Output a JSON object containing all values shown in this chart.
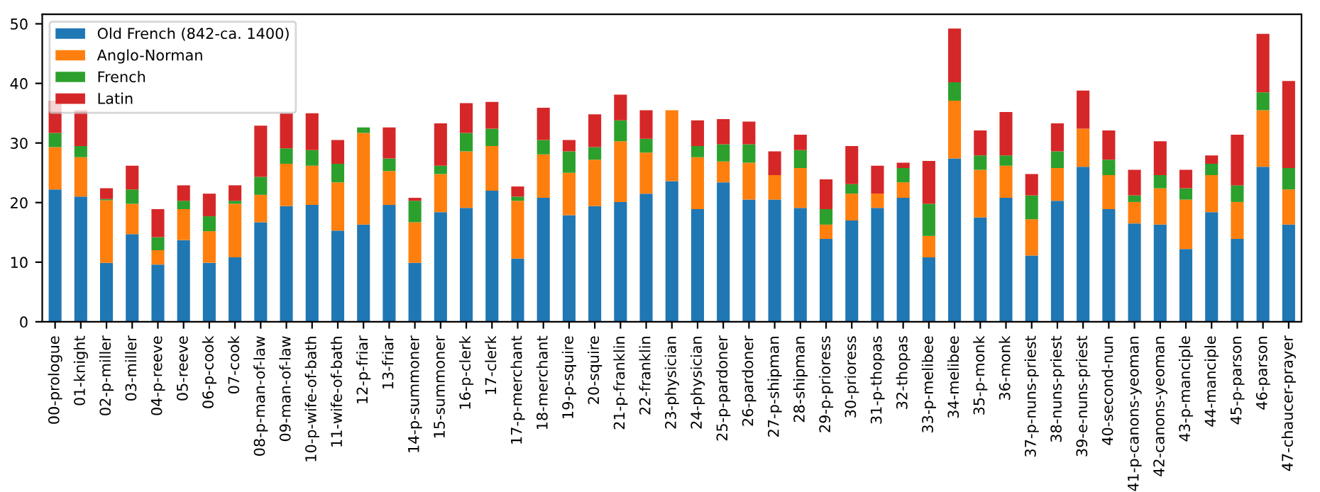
{
  "chart_data": {
    "type": "bar",
    "stacked": true,
    "legend": "top left",
    "grid": false,
    "categories": [
      "00-prologue",
      "01-knight",
      "02-p-miller",
      "03-miller",
      "04-p-reeve",
      "05-reeve",
      "06-p-cook",
      "07-cook",
      "08-p-man-of-law",
      "09-man-of-law",
      "10-p-wife-of-bath",
      "11-wife-of-bath",
      "12-p-friar",
      "13-friar",
      "14-p-summoner",
      "15-summoner",
      "16-p-clerk",
      "17-clerk",
      "17-p-merchant",
      "18-merchant",
      "19-p-squire",
      "20-squire",
      "21-p-franklin",
      "22-franklin",
      "23-physician",
      "24-physician",
      "25-p-pardoner",
      "26-pardoner",
      "27-p-shipman",
      "28-shipman",
      "29-p-prioress",
      "30-prioress",
      "31-p-thopas",
      "32-thopas",
      "33-p-melibee",
      "34-melibee",
      "35-p-monk",
      "36-monk",
      "37-p-nuns-priest",
      "38-nuns-priest",
      "39-e-nuns-priest",
      "40-second-nun",
      "41-p-canons-yeoman",
      "42-canons-yeoman",
      "43-p-manciple",
      "44-manciple",
      "45-p-parson",
      "46-parson",
      "47-chaucer-prayer"
    ],
    "series": [
      {
        "name": "Old French (842-ca. 1400)",
        "color": "#1f77b4",
        "values": [
          22.2,
          21.0,
          9.9,
          14.7,
          9.6,
          13.7,
          9.9,
          10.8,
          16.7,
          19.4,
          19.6,
          15.3,
          16.3,
          19.6,
          9.9,
          18.4,
          19.1,
          22.0,
          10.6,
          20.8,
          17.9,
          19.4,
          20.1,
          21.5,
          23.6,
          18.9,
          23.4,
          20.5,
          20.5,
          19.1,
          13.9,
          17.0,
          19.1,
          20.8,
          10.8,
          27.4,
          17.5,
          20.8,
          11.1,
          20.3,
          26.0,
          18.9,
          16.5,
          16.3,
          12.2,
          18.4,
          13.9,
          26.0,
          16.3
        ]
      },
      {
        "name": "Anglo-Norman",
        "color": "#ff7f0e",
        "values": [
          7.1,
          6.6,
          10.5,
          5.1,
          2.4,
          5.2,
          5.3,
          9.0,
          4.6,
          7.1,
          6.6,
          8.1,
          15.4,
          5.7,
          6.8,
          6.4,
          9.5,
          7.5,
          9.7,
          7.3,
          7.1,
          7.8,
          10.2,
          6.9,
          11.9,
          8.7,
          3.5,
          6.2,
          4.1,
          6.7,
          2.4,
          4.5,
          2.4,
          2.6,
          3.6,
          9.7,
          8.0,
          5.4,
          6.1,
          5.5,
          6.4,
          5.7,
          3.6,
          6.1,
          8.3,
          6.2,
          6.2,
          9.5,
          5.9
        ]
      },
      {
        "name": "French",
        "color": "#2ca02c",
        "values": [
          2.4,
          1.9,
          0.2,
          2.4,
          2.2,
          1.4,
          2.5,
          0.5,
          3.0,
          2.6,
          2.6,
          3.1,
          0.9,
          2.1,
          3.6,
          1.4,
          3.1,
          2.9,
          0.7,
          2.4,
          3.6,
          2.1,
          3.5,
          2.3,
          0,
          1.9,
          2.9,
          3.1,
          0,
          3.0,
          2.6,
          1.6,
          0,
          2.4,
          5.4,
          3.1,
          2.4,
          1.7,
          4.0,
          2.8,
          0,
          2.6,
          1.1,
          2.2,
          1.9,
          1.9,
          2.8,
          3.0,
          3.6
        ]
      },
      {
        "name": "Latin",
        "color": "#d62728",
        "values": [
          5.4,
          6.0,
          1.8,
          4.0,
          4.7,
          2.6,
          3.8,
          2.6,
          8.6,
          5.9,
          6.2,
          4.0,
          0,
          5.2,
          0.5,
          7.1,
          5.0,
          4.5,
          1.7,
          5.4,
          1.9,
          5.5,
          4.3,
          4.8,
          0,
          4.3,
          4.2,
          3.8,
          4.0,
          2.6,
          5.0,
          6.4,
          4.7,
          0.9,
          7.2,
          9.0,
          4.2,
          7.3,
          3.6,
          4.7,
          6.4,
          4.9,
          4.3,
          5.7,
          3.1,
          1.4,
          8.5,
          9.8,
          14.6
        ]
      }
    ],
    "ylim": [
      0,
      51.6
    ],
    "yticks": [
      0,
      10,
      20,
      30,
      40,
      50
    ]
  }
}
